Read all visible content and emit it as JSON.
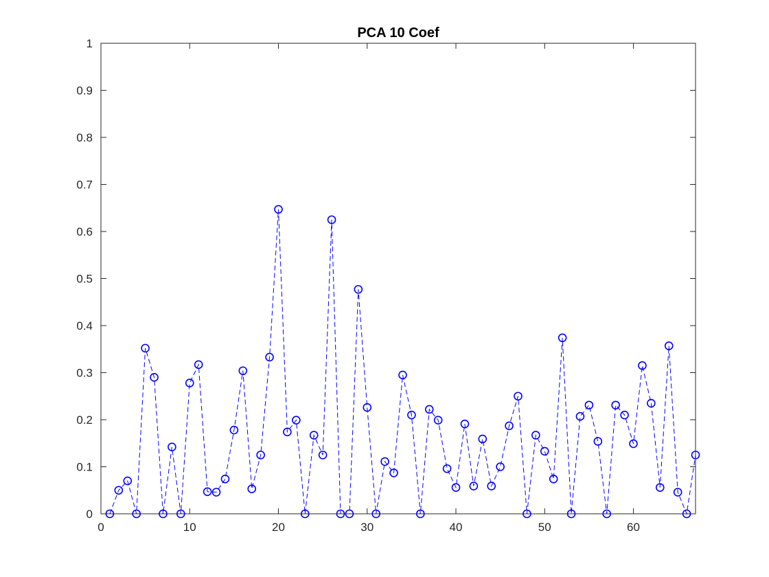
{
  "chart_data": {
    "type": "line",
    "title": "PCA 10 Coef",
    "xlabel": "",
    "ylabel": "",
    "xlim": [
      0,
      67
    ],
    "ylim": [
      0,
      1
    ],
    "xticks": [
      "0",
      "10",
      "20",
      "30",
      "40",
      "50",
      "60"
    ],
    "yticks": [
      "0",
      "0.1",
      "0.2",
      "0.3",
      "0.4",
      "0.5",
      "0.6",
      "0.7",
      "0.8",
      "0.9",
      "1"
    ],
    "grid": false,
    "legend": "none",
    "series": [
      {
        "color": "#0000ff",
        "line_style": "dashed",
        "marker": "circle",
        "x": [
          1,
          2,
          3,
          4,
          5,
          6,
          7,
          8,
          9,
          10,
          11,
          12,
          13,
          14,
          15,
          16,
          17,
          18,
          19,
          20,
          21,
          22,
          23,
          24,
          25,
          26,
          27,
          28,
          29,
          30,
          31,
          32,
          33,
          34,
          35,
          36,
          37,
          38,
          39,
          40,
          41,
          42,
          43,
          44,
          45,
          46,
          47,
          48,
          49,
          50,
          51,
          52,
          53,
          54,
          55,
          56,
          57,
          58,
          59,
          60,
          61,
          62,
          63,
          64,
          65,
          66,
          67
        ],
        "y": [
          0,
          0.05,
          0.07,
          0,
          0.352,
          0.29,
          0,
          0.142,
          0,
          0.278,
          0.317,
          0.047,
          0.046,
          0.074,
          0.178,
          0.304,
          0.053,
          0.125,
          0.333,
          0.647,
          0.174,
          0.199,
          0,
          0.167,
          0.125,
          0.625,
          0,
          0,
          0.477,
          0.226,
          0,
          0.111,
          0.087,
          0.295,
          0.21,
          0,
          0.222,
          0.199,
          0.096,
          0.056,
          0.191,
          0.059,
          0.159,
          0.059,
          0.1,
          0.187,
          0.25,
          0,
          0.167,
          0.133,
          0.074,
          0.374,
          0,
          0.207,
          0.231,
          0.154,
          0,
          0.231,
          0.21,
          0.149,
          0.315,
          0.235,
          0.056,
          0.357,
          0.046,
          0,
          0.125
        ]
      }
    ]
  }
}
